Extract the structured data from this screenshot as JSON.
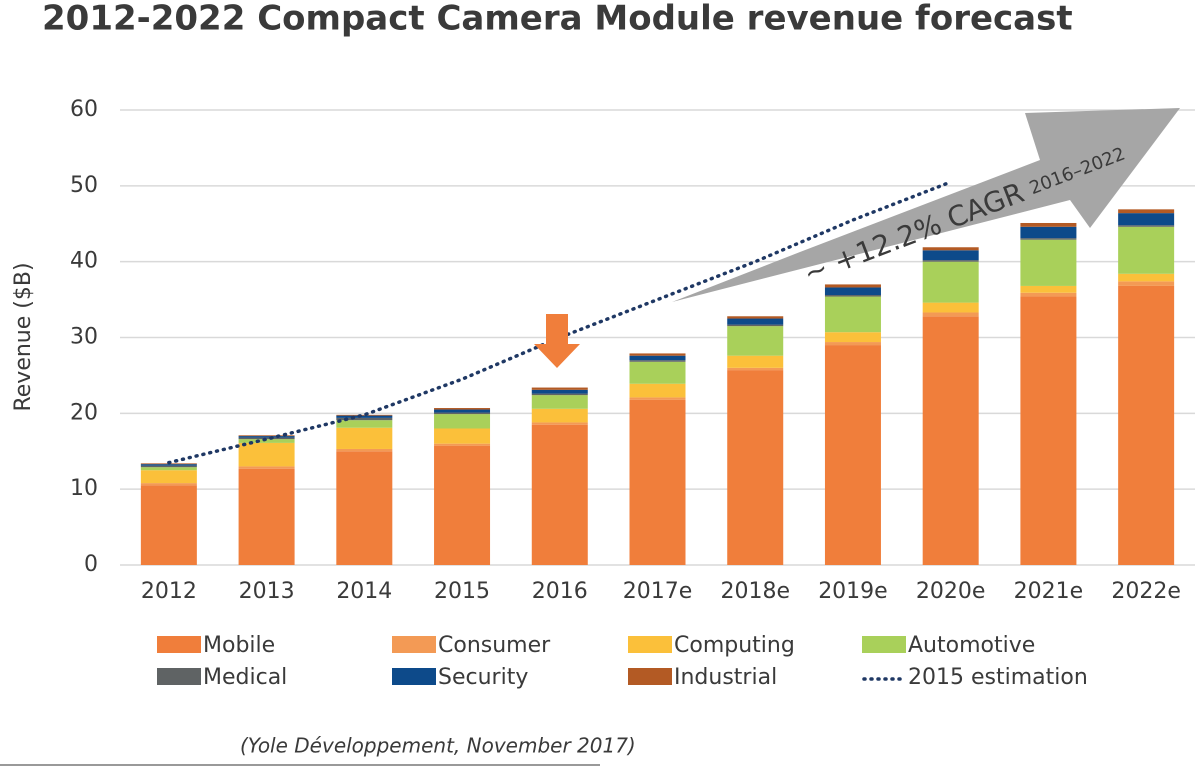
{
  "chart_data": {
    "type": "bar",
    "stacked": true,
    "title": "2012-2022 Compact Camera Module revenue forecast",
    "y_label": "Revenue ($B)",
    "source": "(Yole Développement, November 2017)",
    "annotation": {
      "text": "~ +12.2% CAGR",
      "subscript": "2016–2022"
    },
    "categories": [
      "2012",
      "2013",
      "2014",
      "2015",
      "2016",
      "2017e",
      "2018e",
      "2019e",
      "2020e",
      "2021e",
      "2022e"
    ],
    "ylim": [
      0,
      60
    ],
    "yticks": [
      0,
      10,
      20,
      30,
      40,
      50,
      60
    ],
    "grid": true,
    "series": [
      {
        "name": "Mobile",
        "color": "#f07e3b",
        "values": [
          10.5,
          12.7,
          15.0,
          15.7,
          18.5,
          21.8,
          25.7,
          29.0,
          32.8,
          35.4,
          36.8
        ]
      },
      {
        "name": "Consumer",
        "color": "#f39a55",
        "values": [
          0.3,
          0.3,
          0.3,
          0.3,
          0.3,
          0.3,
          0.3,
          0.4,
          0.5,
          0.5,
          0.6
        ]
      },
      {
        "name": "Computing",
        "color": "#fbc03a",
        "values": [
          1.7,
          3.1,
          2.8,
          2.0,
          1.8,
          1.8,
          1.6,
          1.3,
          1.3,
          0.9,
          1.0
        ]
      },
      {
        "name": "Automotive",
        "color": "#a9d05a",
        "values": [
          0.4,
          0.5,
          1.0,
          1.9,
          1.8,
          2.9,
          3.9,
          4.7,
          5.4,
          6.1,
          6.2
        ]
      },
      {
        "name": "Medical",
        "color": "#5f6364",
        "values": [
          0.2,
          0.2,
          0.3,
          0.2,
          0.2,
          0.2,
          0.2,
          0.2,
          0.2,
          0.2,
          0.2
        ]
      },
      {
        "name": "Security",
        "color": "#0d4a8a",
        "values": [
          0.2,
          0.2,
          0.3,
          0.4,
          0.5,
          0.6,
          0.8,
          1.0,
          1.3,
          1.5,
          1.6
        ]
      },
      {
        "name": "Industrial",
        "color": "#b35a24",
        "values": [
          0.1,
          0.1,
          0.1,
          0.2,
          0.3,
          0.3,
          0.3,
          0.4,
          0.4,
          0.5,
          0.5
        ]
      },
      {
        "name": "2015 estimation",
        "color": "#1f3864",
        "type": "line",
        "style": "dotted",
        "values": [
          13.5,
          16.6,
          19.8,
          24.5,
          30.0,
          35.0,
          40.0,
          45.5,
          50.5,
          null,
          null
        ]
      }
    ]
  }
}
